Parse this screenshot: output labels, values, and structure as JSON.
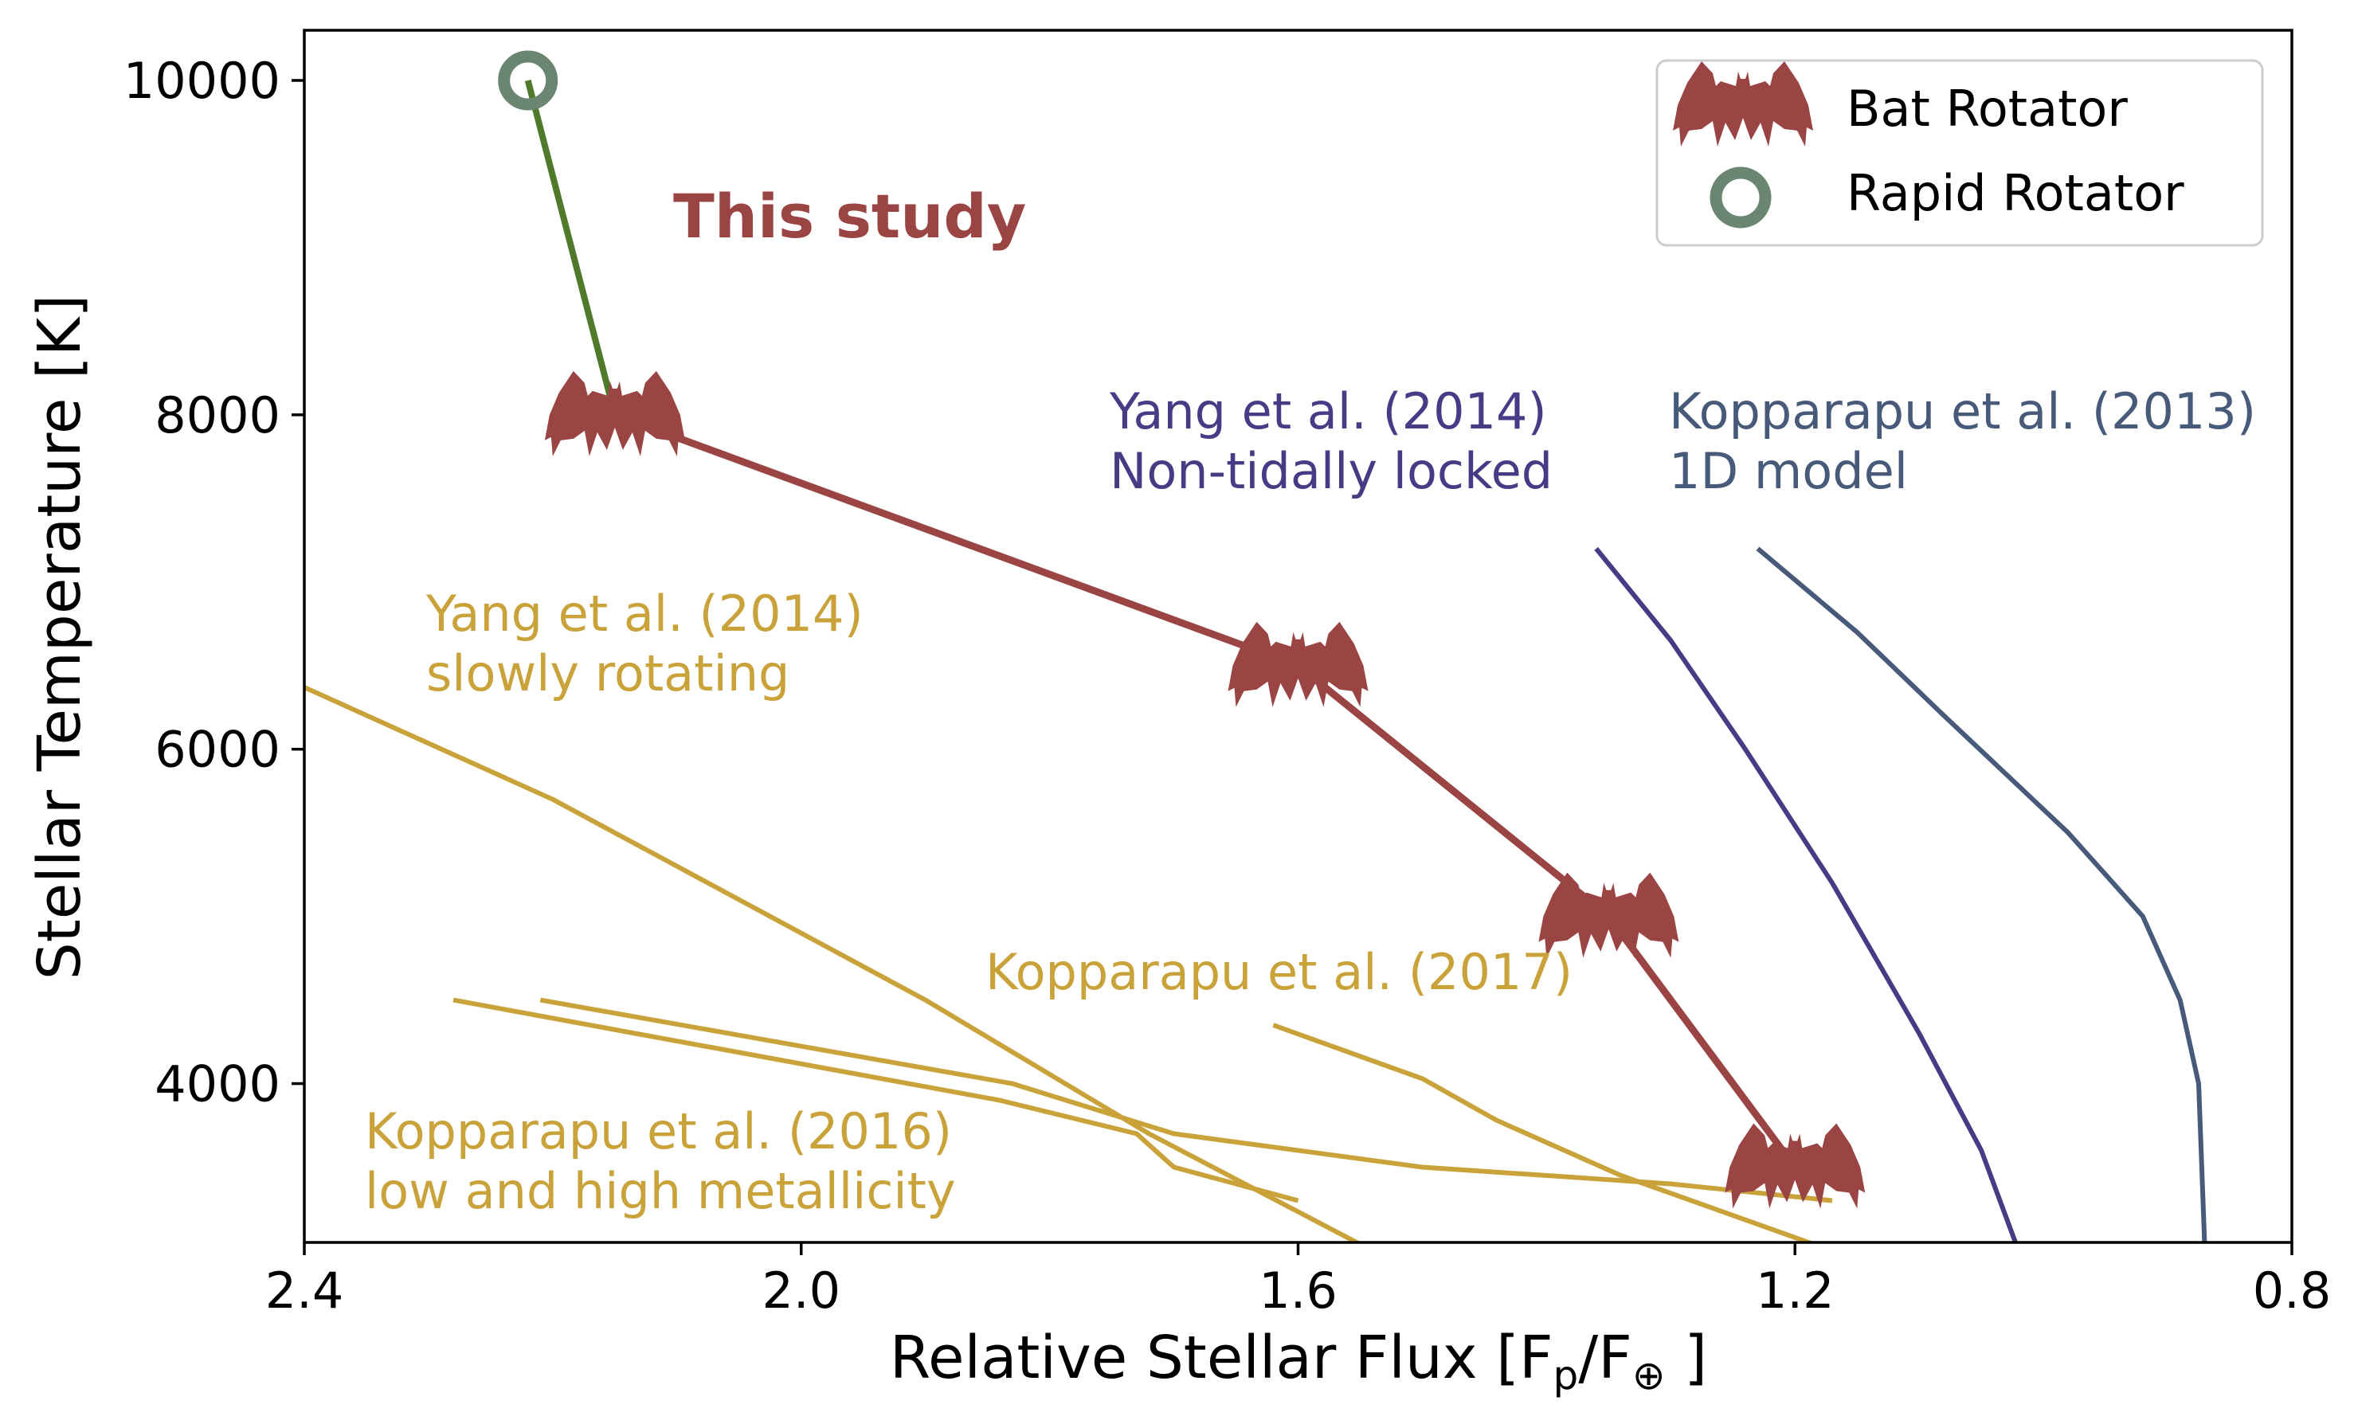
{
  "chart_data": {
    "type": "line",
    "xlabel": "Relative Stellar Flux [F",
    "xlabel_sub_p": "p",
    "xlabel_mid": "/F",
    "xlabel_sub_earth": "⊕",
    "xlabel_end": " ]",
    "ylabel": "Stellar Temperature [K]",
    "xlim": [
      2.4,
      0.8
    ],
    "ylim": [
      3050,
      10300
    ],
    "x_ticks": [
      "2.4",
      "2.0",
      "1.6",
      "1.2",
      "0.8"
    ],
    "x_tick_values": [
      2.4,
      2.0,
      1.6,
      1.2,
      0.8
    ],
    "y_ticks": [
      "4000",
      "6000",
      "8000",
      "10000"
    ],
    "y_tick_values": [
      4000,
      6000,
      8000,
      10000
    ],
    "grid": false,
    "legend_position": "top-right",
    "legend": [
      {
        "label": "Bat Rotator",
        "marker": "bat",
        "color": "#9b4444"
      },
      {
        "label": "Rapid Rotator",
        "marker": "ring",
        "color": "#6b8670"
      }
    ],
    "colors": {
      "this_study": "#9b4444",
      "rapid": "#6b8670",
      "rapid_line": "#4f7a2b",
      "gold": "#c9a23a",
      "yang_nontidal": "#463b85",
      "kopparapu13": "#475a7a"
    },
    "annotations": {
      "this_study": "This study",
      "yang_nontidal_1": "Yang et al. (2014)",
      "yang_nontidal_2": "Non-tidally locked",
      "kop13_1": "Kopparapu et al. (2013)",
      "kop13_2": "1D model",
      "yang_slow_1": "Yang et al. (2014)",
      "yang_slow_2": "slowly rotating",
      "kop17": "Kopparapu et al. (2017)",
      "kop16_1": "Kopparapu et al. (2016)",
      "kop16_2": "low and high metallicity"
    },
    "series": [
      {
        "key": "this_study_green",
        "x": [
          2.22,
          2.15
        ],
        "y": [
          10000,
          8000
        ],
        "color": "#4f7a2b",
        "width": 8
      },
      {
        "key": "this_study_red",
        "x": [
          2.15,
          1.6,
          1.35,
          1.2
        ],
        "y": [
          8000,
          6500,
          5000,
          3500
        ],
        "color": "#9b4444",
        "width": 9
      },
      {
        "key": "yang_slow",
        "x": [
          2.4,
          2.2,
          1.9,
          1.72,
          1.54
        ],
        "y": [
          6370,
          5700,
          4500,
          3700,
          3000
        ],
        "color": "#c9a23a",
        "width": 6
      },
      {
        "key": "kop16_low",
        "x": [
          2.28,
          1.84,
          1.73,
          1.7,
          1.6
        ],
        "y": [
          4500,
          3900,
          3700,
          3500,
          3300
        ],
        "color": "#c9a23a",
        "width": 6
      },
      {
        "key": "kop16_high",
        "x": [
          2.21,
          1.83,
          1.7,
          1.5,
          1.3,
          1.17
        ],
        "y": [
          4500,
          4000,
          3700,
          3500,
          3400,
          3300
        ],
        "color": "#c9a23a",
        "width": 6
      },
      {
        "key": "kop17",
        "x": [
          1.62,
          1.5,
          1.44,
          1.34,
          1.17
        ],
        "y": [
          4350,
          4030,
          3780,
          3450,
          3000
        ],
        "color": "#c9a23a",
        "width": 6
      },
      {
        "key": "yang_nontidal",
        "x": [
          1.36,
          1.3,
          1.24,
          1.17,
          1.1,
          1.05,
          1.02
        ],
        "y": [
          7200,
          6650,
          6000,
          5200,
          4300,
          3600,
          3000
        ],
        "color": "#463b85",
        "width": 6
      },
      {
        "key": "kopparapu13",
        "x": [
          1.23,
          1.15,
          1.08,
          0.98,
          0.92,
          0.89,
          0.875,
          0.87
        ],
        "y": [
          7200,
          6700,
          6200,
          5500,
          5000,
          4500,
          4000,
          3000
        ],
        "color": "#475a7a",
        "width": 6
      }
    ],
    "bat_points": [
      {
        "x": 2.15,
        "y": 8000
      },
      {
        "x": 1.6,
        "y": 6500
      },
      {
        "x": 1.35,
        "y": 5000
      },
      {
        "x": 1.2,
        "y": 3500
      }
    ],
    "rapid_point": {
      "x": 2.22,
      "y": 10000
    }
  }
}
